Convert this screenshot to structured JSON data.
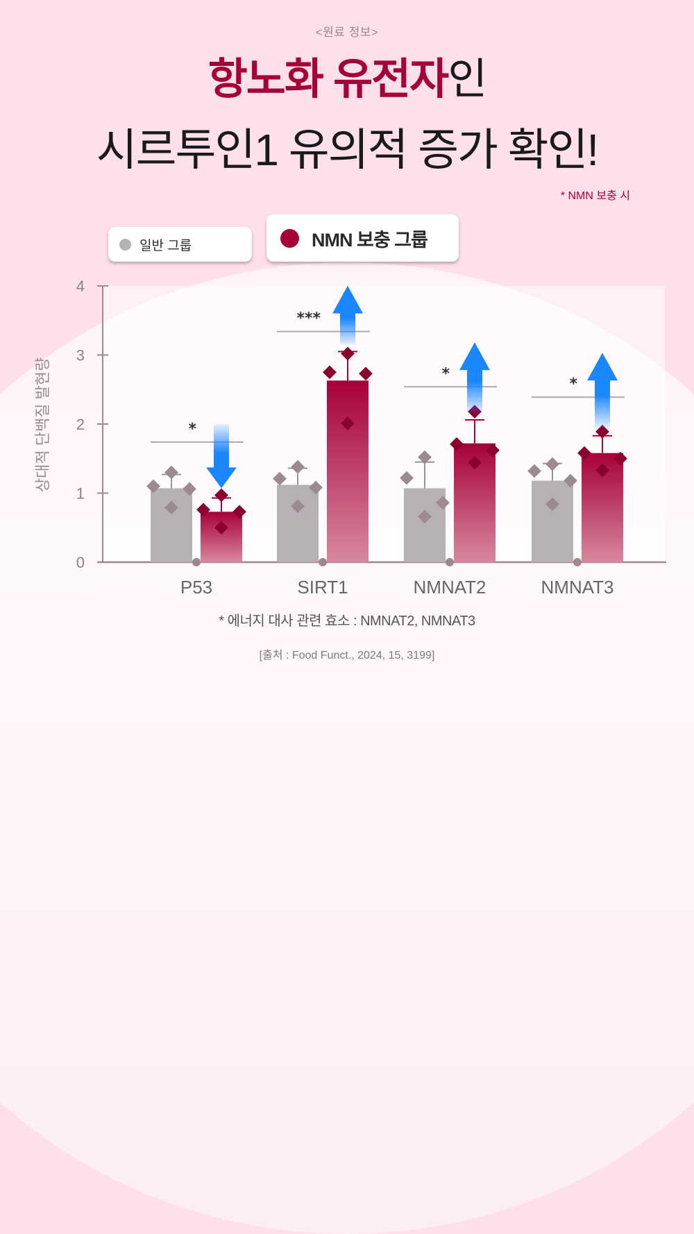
{
  "header": {
    "subtitle": "<원료 정보>",
    "title_line1_accent": "항노화 유전자",
    "title_line1_rest": "인",
    "title_line2": "시르투인1 유의적 증가 확인!",
    "note": "* NMN 보충 시"
  },
  "legend": {
    "normal_label": "일반 그룹",
    "nmn_label": "NMN 보충 그룹"
  },
  "colors": {
    "background": "#fde0e8",
    "accent": "#a6003a",
    "normal_bar": "#b7b1b5",
    "nmn_bar_top": "#a6003a",
    "nmn_bar_bottom": "#d8889f",
    "arrow": "#1a86ff",
    "axis": "#a08690"
  },
  "footer": {
    "footnote": "* 에너지 대사 관련 효소 : NMNAT2, NMNAT3",
    "source": "[출처 : Food Funct., 2024, 15, 3199]"
  },
  "chart_data": {
    "type": "bar",
    "title": "",
    "xlabel": "",
    "ylabel": "상대적 단백질 발현량",
    "ylim": [
      0,
      4
    ],
    "yticks": [
      0,
      1,
      2,
      3,
      4
    ],
    "categories": [
      "P53",
      "SIRT1",
      "NMNAT2",
      "NMNAT3"
    ],
    "series": [
      {
        "name": "일반 그룹",
        "values": [
          1.07,
          1.12,
          1.07,
          1.18
        ],
        "error": [
          0.2,
          0.24,
          0.38,
          0.25
        ],
        "points": [
          [
            1.3,
            1.1,
            1.06,
            0.79
          ],
          [
            1.38,
            1.21,
            1.08,
            0.81
          ],
          [
            1.52,
            1.22,
            0.86,
            0.66
          ],
          [
            1.42,
            1.32,
            1.18,
            0.84
          ]
        ]
      },
      {
        "name": "NMN 보충 그룹",
        "values": [
          0.73,
          2.63,
          1.72,
          1.58
        ],
        "error": [
          0.2,
          0.42,
          0.34,
          0.25
        ],
        "points": [
          [
            0.97,
            0.76,
            0.73,
            0.5
          ],
          [
            3.02,
            2.75,
            2.73,
            2.01
          ],
          [
            2.18,
            1.71,
            1.62,
            1.44
          ],
          [
            1.89,
            1.58,
            1.5,
            1.33
          ]
        ]
      }
    ],
    "significance": [
      {
        "category": "P53",
        "label": "*",
        "y": 1.74,
        "direction": "down"
      },
      {
        "category": "SIRT1",
        "label": "***",
        "y": 3.34,
        "direction": "up"
      },
      {
        "category": "NMNAT2",
        "label": "*",
        "y": 2.54,
        "direction": "up"
      },
      {
        "category": "NMNAT3",
        "label": "*",
        "y": 2.39,
        "direction": "up"
      }
    ],
    "grid": false,
    "legend_position": "top"
  }
}
